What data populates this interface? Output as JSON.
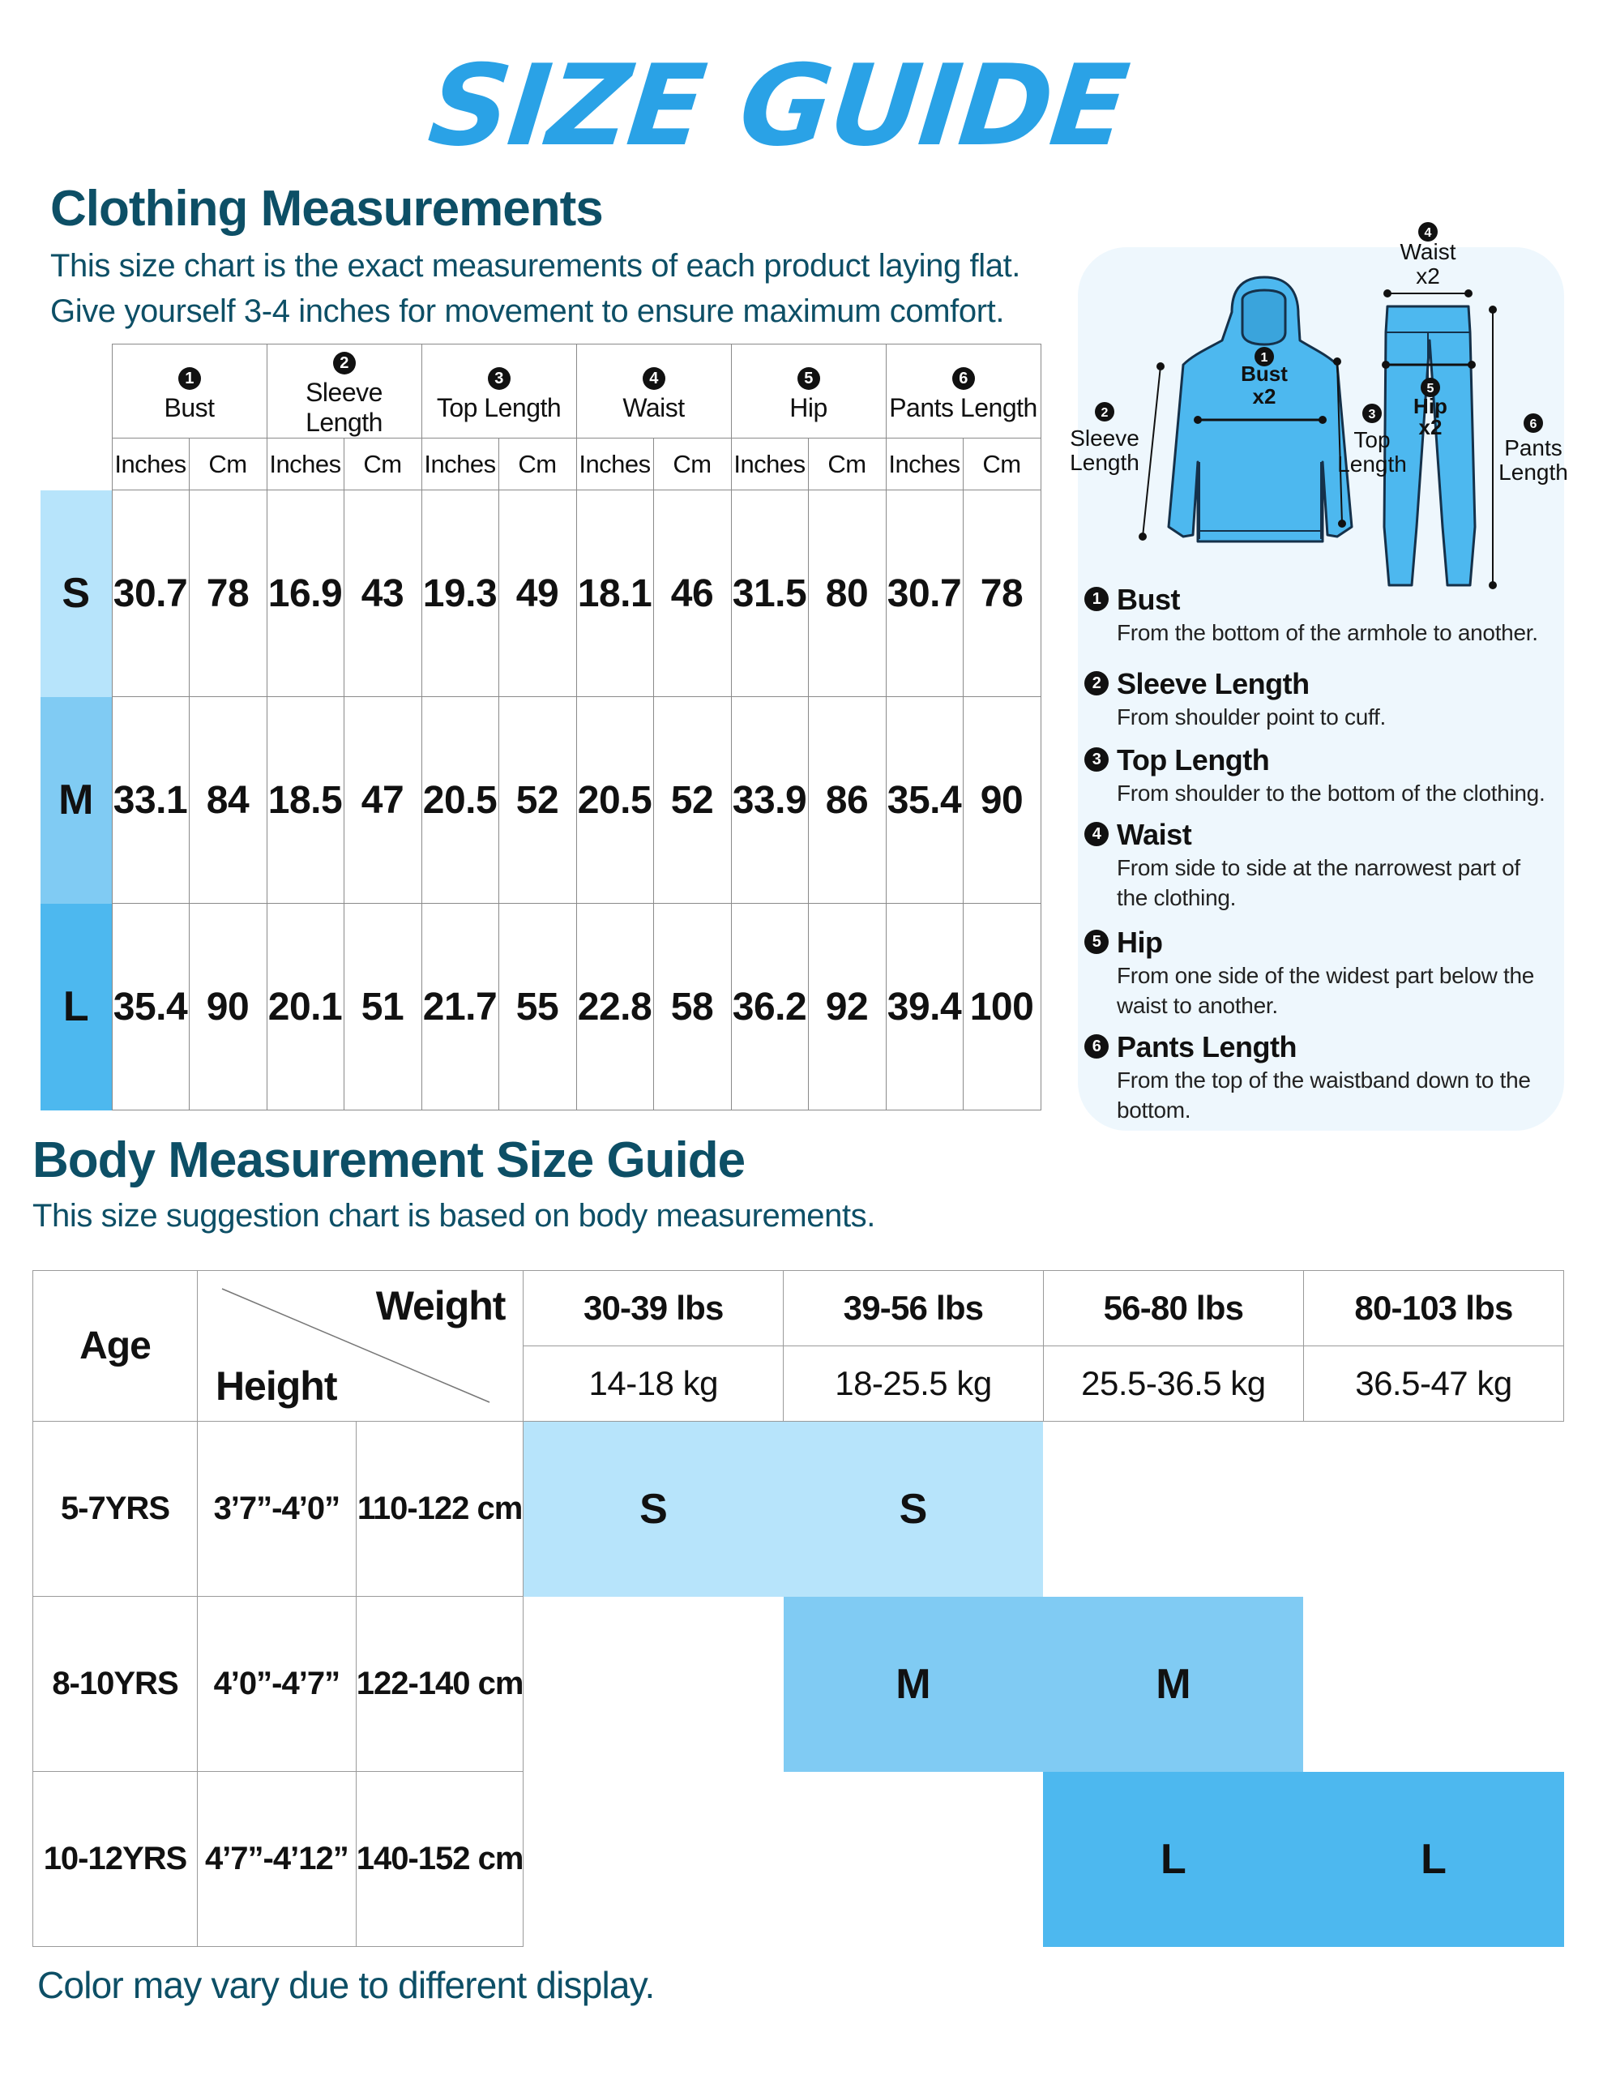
{
  "header": {
    "brand_title": "SIZE GUIDE"
  },
  "clothing": {
    "title": "Clothing Measurements",
    "desc1": "This size chart is the exact measurements of each product laying flat.",
    "desc2": "Give yourself 3-4 inches for movement to ensure maximum comfort.",
    "columns": [
      {
        "num": "1",
        "label": "Bust"
      },
      {
        "num": "2",
        "label": "Sleeve Length"
      },
      {
        "num": "3",
        "label": "Top Length"
      },
      {
        "num": "4",
        "label": "Waist"
      },
      {
        "num": "5",
        "label": "Hip"
      },
      {
        "num": "6",
        "label": "Pants Length"
      }
    ],
    "unit_inches": "Inches",
    "unit_cm": "Cm",
    "rows": [
      {
        "size": "S",
        "color": "#b7e4fb",
        "values": [
          "30.7",
          "78",
          "16.9",
          "43",
          "19.3",
          "49",
          "18.1",
          "46",
          "31.5",
          "80",
          "30.7",
          "78"
        ]
      },
      {
        "size": "M",
        "color": "#80cbf3",
        "values": [
          "33.1",
          "84",
          "18.5",
          "47",
          "20.5",
          "52",
          "20.5",
          "52",
          "33.9",
          "86",
          "35.4",
          "90"
        ]
      },
      {
        "size": "L",
        "color": "#4db8ef",
        "values": [
          "35.4",
          "90",
          "20.1",
          "51",
          "21.7",
          "55",
          "22.8",
          "58",
          "36.2",
          "92",
          "39.4",
          "100"
        ]
      }
    ]
  },
  "diagram": {
    "waist_num": "4",
    "waist_label": "Waist",
    "waist_mult": "x2",
    "bust_num": "1",
    "bust_label": "Bust",
    "bust_mult": "x2",
    "sleeve_num": "2",
    "sleeve_label1": "Sleeve",
    "sleeve_label2": "Length",
    "top_num": "3",
    "top_label1": "Top",
    "top_label2": "Length",
    "hip_num": "5",
    "hip_label": "Hip",
    "hip_mult": "x2",
    "pants_num": "6",
    "pants_label1": "Pants",
    "pants_label2": "Length",
    "garment_color": "#4db8ef"
  },
  "definitions": [
    {
      "num": "1",
      "title": "Bust",
      "desc": [
        "From the bottom of the armhole to another."
      ]
    },
    {
      "num": "2",
      "title": "Sleeve Length",
      "desc": [
        "From shoulder point to cuff."
      ]
    },
    {
      "num": "3",
      "title": "Top Length",
      "desc": [
        "From shoulder to the bottom of the clothing."
      ]
    },
    {
      "num": "4",
      "title": "Waist",
      "desc": [
        "From side to side at the narrowest part of",
        "the clothing."
      ]
    },
    {
      "num": "5",
      "title": "Hip",
      "desc": [
        "From one side of the widest part below the",
        "waist to another."
      ]
    },
    {
      "num": "6",
      "title": "Pants Length",
      "desc": [
        "From the top of the waistband down to the",
        "bottom."
      ]
    }
  ],
  "body": {
    "title": "Body Measurement Size Guide",
    "desc": "This size suggestion chart is based on body measurements.",
    "age_header": "Age",
    "weight_header": "Weight",
    "height_header": "Height",
    "weights_lbs": [
      "30-39 lbs",
      "39-56 lbs",
      "56-80 lbs",
      "80-103 lbs"
    ],
    "weights_kg": [
      "14-18 kg",
      "18-25.5 kg",
      "25.5-36.5 kg",
      "36.5-47 kg"
    ],
    "rows": [
      {
        "age": "5-7YRS",
        "height_ft": "3’7”-4’0”",
        "height_cm": "110-122 cm",
        "cells": [
          "S",
          "S",
          "",
          ""
        ]
      },
      {
        "age": "8-10YRS",
        "height_ft": "4’0”-4’7”",
        "height_cm": "122-140 cm",
        "cells": [
          "",
          "M",
          "M",
          ""
        ]
      },
      {
        "age": "10-12YRS",
        "height_ft": "4’7”-4’12”",
        "height_cm": "140-152 cm",
        "cells": [
          "",
          "",
          "L",
          "L"
        ]
      }
    ]
  },
  "footer": {
    "note": "Color may vary due to different display."
  }
}
